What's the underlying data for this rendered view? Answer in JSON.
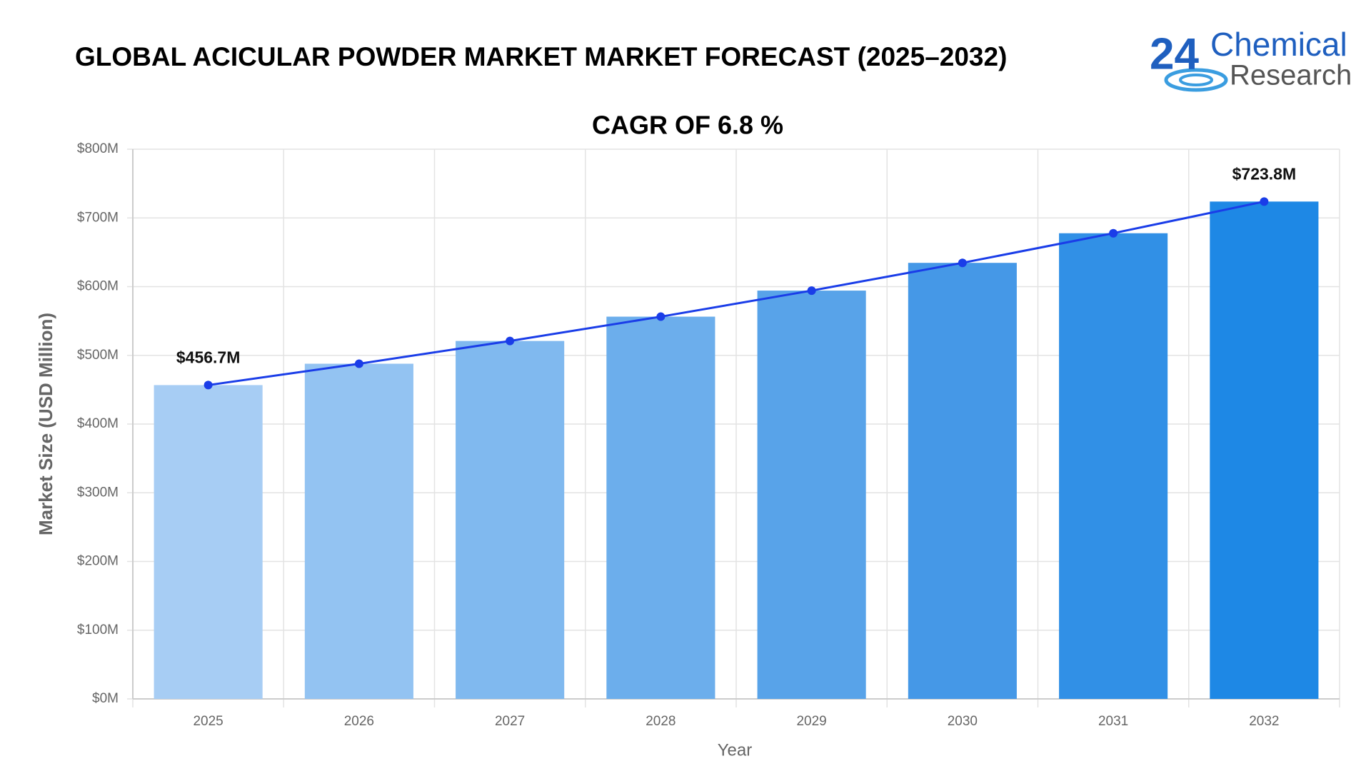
{
  "logo": {
    "number": "24",
    "line1": "Chemical",
    "line2": "Research"
  },
  "chart_data": {
    "type": "bar",
    "title": "GLOBAL ACICULAR POWDER MARKET MARKET FORECAST (2025–2032)",
    "subtitle": "CAGR OF 6.8 %",
    "x_label": "Year",
    "y_label": "Market Size (USD Million)",
    "categories": [
      "2025",
      "2026",
      "2027",
      "2028",
      "2029",
      "2030",
      "2031",
      "2032"
    ],
    "values": [
      456.7,
      487.8,
      520.9,
      556.3,
      594.2,
      634.6,
      677.7,
      723.8
    ],
    "value_labels": [
      "$456.7M",
      null,
      null,
      null,
      null,
      null,
      null,
      "$723.8M"
    ],
    "colors": [
      "#a7cdf4",
      "#93c3f2",
      "#80b9ef",
      "#6caeec",
      "#58a3e9",
      "#4598e7",
      "#3190e6",
      "#1e88e5"
    ],
    "line_color": "#1a3de8",
    "ylim": [
      0,
      800
    ],
    "yticks": [
      {
        "value": 0,
        "label": "$0M"
      },
      {
        "value": 100,
        "label": "$100M"
      },
      {
        "value": 200,
        "label": "$200M"
      },
      {
        "value": 300,
        "label": "$300M"
      },
      {
        "value": 400,
        "label": "$400M"
      },
      {
        "value": 500,
        "label": "$500M"
      },
      {
        "value": 600,
        "label": "$600M"
      },
      {
        "value": 700,
        "label": "$700M"
      },
      {
        "value": 800,
        "label": "$800M"
      }
    ],
    "grid": true
  }
}
